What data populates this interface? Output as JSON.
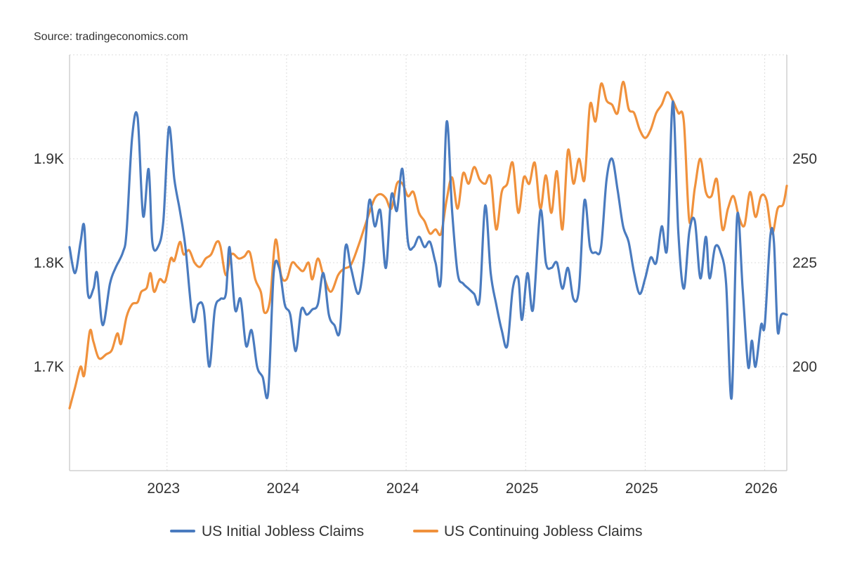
{
  "source": "Source: tradingeconomics.com",
  "chart_data": {
    "type": "line",
    "title": "",
    "x_range": [
      2022.4,
      2026.3
    ],
    "x_ticks": [
      {
        "value": 2022.93,
        "label": "2023"
      },
      {
        "value": 2023.58,
        "label": "2024"
      },
      {
        "value": 2024.23,
        "label": "2024"
      },
      {
        "value": 2024.88,
        "label": "2025"
      },
      {
        "value": 2025.53,
        "label": "2025"
      },
      {
        "value": 2026.18,
        "label": "2026"
      }
    ],
    "left_axis": {
      "unit": "thousands",
      "ylim": [
        1.6,
        2.0
      ],
      "ticks": [
        {
          "value": 1.7,
          "label": "1.7K"
        },
        {
          "value": 1.8,
          "label": "1.8K"
        },
        {
          "value": 1.9,
          "label": "1.9K"
        }
      ]
    },
    "right_axis": {
      "unit": "thousands",
      "ylim": [
        175,
        275
      ],
      "ticks": [
        {
          "value": 200,
          "label": "200"
        },
        {
          "value": 225,
          "label": "225"
        },
        {
          "value": 250,
          "label": "250"
        }
      ]
    },
    "grid": true,
    "legend_position": "bottom",
    "series": [
      {
        "name": "US Initial Jobless Claims",
        "axis": "left",
        "color": "#4a7bbf",
        "points": [
          [
            2022.4,
            1.815
          ],
          [
            2022.43,
            1.79
          ],
          [
            2022.46,
            1.82
          ],
          [
            2022.48,
            1.835
          ],
          [
            2022.5,
            1.77
          ],
          [
            2022.53,
            1.775
          ],
          [
            2022.55,
            1.79
          ],
          [
            2022.58,
            1.74
          ],
          [
            2022.62,
            1.78
          ],
          [
            2022.65,
            1.795
          ],
          [
            2022.69,
            1.81
          ],
          [
            2022.71,
            1.83
          ],
          [
            2022.74,
            1.92
          ],
          [
            2022.77,
            1.94
          ],
          [
            2022.8,
            1.845
          ],
          [
            2022.83,
            1.89
          ],
          [
            2022.85,
            1.82
          ],
          [
            2022.88,
            1.815
          ],
          [
            2022.91,
            1.84
          ],
          [
            2022.94,
            1.93
          ],
          [
            2022.97,
            1.88
          ],
          [
            2023.0,
            1.85
          ],
          [
            2023.03,
            1.815
          ],
          [
            2023.07,
            1.745
          ],
          [
            2023.1,
            1.76
          ],
          [
            2023.13,
            1.755
          ],
          [
            2023.16,
            1.7
          ],
          [
            2023.19,
            1.755
          ],
          [
            2023.22,
            1.765
          ],
          [
            2023.25,
            1.77
          ],
          [
            2023.27,
            1.815
          ],
          [
            2023.3,
            1.755
          ],
          [
            2023.33,
            1.765
          ],
          [
            2023.36,
            1.72
          ],
          [
            2023.39,
            1.735
          ],
          [
            2023.42,
            1.7
          ],
          [
            2023.45,
            1.69
          ],
          [
            2023.48,
            1.675
          ],
          [
            2023.51,
            1.79
          ],
          [
            2023.54,
            1.795
          ],
          [
            2023.57,
            1.76
          ],
          [
            2023.6,
            1.75
          ],
          [
            2023.63,
            1.715
          ],
          [
            2023.66,
            1.755
          ],
          [
            2023.69,
            1.75
          ],
          [
            2023.72,
            1.755
          ],
          [
            2023.75,
            1.76
          ],
          [
            2023.78,
            1.79
          ],
          [
            2023.81,
            1.75
          ],
          [
            2023.84,
            1.74
          ],
          [
            2023.87,
            1.735
          ],
          [
            2023.9,
            1.815
          ],
          [
            2023.93,
            1.795
          ],
          [
            2023.97,
            1.77
          ],
          [
            2024.0,
            1.8
          ],
          [
            2024.03,
            1.86
          ],
          [
            2024.06,
            1.835
          ],
          [
            2024.09,
            1.85
          ],
          [
            2024.12,
            1.795
          ],
          [
            2024.15,
            1.865
          ],
          [
            2024.18,
            1.85
          ],
          [
            2024.21,
            1.89
          ],
          [
            2024.24,
            1.82
          ],
          [
            2024.27,
            1.815
          ],
          [
            2024.3,
            1.825
          ],
          [
            2024.33,
            1.815
          ],
          [
            2024.36,
            1.82
          ],
          [
            2024.39,
            1.8
          ],
          [
            2024.42,
            1.785
          ],
          [
            2024.45,
            1.935
          ],
          [
            2024.48,
            1.85
          ],
          [
            2024.51,
            1.79
          ],
          [
            2024.54,
            1.78
          ],
          [
            2024.57,
            1.775
          ],
          [
            2024.6,
            1.77
          ],
          [
            2024.63,
            1.765
          ],
          [
            2024.66,
            1.855
          ],
          [
            2024.69,
            1.79
          ],
          [
            2024.72,
            1.76
          ],
          [
            2024.75,
            1.735
          ],
          [
            2024.78,
            1.72
          ],
          [
            2024.81,
            1.775
          ],
          [
            2024.84,
            1.785
          ],
          [
            2024.86,
            1.745
          ],
          [
            2024.89,
            1.79
          ],
          [
            2024.92,
            1.755
          ],
          [
            2024.96,
            1.85
          ],
          [
            2024.99,
            1.8
          ],
          [
            2025.02,
            1.795
          ],
          [
            2025.05,
            1.8
          ],
          [
            2025.08,
            1.775
          ],
          [
            2025.11,
            1.795
          ],
          [
            2025.14,
            1.765
          ],
          [
            2025.17,
            1.775
          ],
          [
            2025.2,
            1.86
          ],
          [
            2025.23,
            1.815
          ],
          [
            2025.26,
            1.81
          ],
          [
            2025.29,
            1.815
          ],
          [
            2025.32,
            1.88
          ],
          [
            2025.35,
            1.9
          ],
          [
            2025.38,
            1.87
          ],
          [
            2025.41,
            1.835
          ],
          [
            2025.44,
            1.82
          ],
          [
            2025.47,
            1.79
          ],
          [
            2025.5,
            1.77
          ],
          [
            2025.53,
            1.785
          ],
          [
            2025.56,
            1.805
          ],
          [
            2025.59,
            1.8
          ],
          [
            2025.62,
            1.835
          ],
          [
            2025.65,
            1.815
          ],
          [
            2025.68,
            1.955
          ],
          [
            2025.71,
            1.83
          ],
          [
            2025.74,
            1.775
          ],
          [
            2025.77,
            1.83
          ],
          [
            2025.8,
            1.84
          ],
          [
            2025.83,
            1.785
          ],
          [
            2025.86,
            1.825
          ],
          [
            2025.88,
            1.785
          ],
          [
            2025.91,
            1.815
          ],
          [
            2025.94,
            1.81
          ],
          [
            2025.97,
            1.78
          ],
          [
            2026.0,
            1.67
          ],
          [
            2026.03,
            1.845
          ],
          [
            2026.06,
            1.775
          ],
          [
            2026.09,
            1.7
          ],
          [
            2026.11,
            1.725
          ],
          [
            2026.13,
            1.7
          ],
          [
            2026.16,
            1.74
          ],
          [
            2026.18,
            1.74
          ],
          [
            2026.21,
            1.825
          ],
          [
            2026.23,
            1.82
          ],
          [
            2026.25,
            1.735
          ],
          [
            2026.27,
            1.75
          ],
          [
            2026.3,
            1.75
          ]
        ]
      },
      {
        "name": "US Continuing Jobless Claims",
        "axis": "right",
        "color": "#f0913c",
        "points": [
          [
            2022.4,
            190.0
          ],
          [
            2022.43,
            195.0
          ],
          [
            2022.46,
            200.0
          ],
          [
            2022.48,
            198.0
          ],
          [
            2022.51,
            208.5
          ],
          [
            2022.53,
            206.0
          ],
          [
            2022.56,
            202.0
          ],
          [
            2022.6,
            203.0
          ],
          [
            2022.63,
            204.0
          ],
          [
            2022.66,
            208.0
          ],
          [
            2022.68,
            205.5
          ],
          [
            2022.71,
            212.0
          ],
          [
            2022.74,
            215.0
          ],
          [
            2022.77,
            215.5
          ],
          [
            2022.79,
            218.0
          ],
          [
            2022.82,
            219.0
          ],
          [
            2022.84,
            222.5
          ],
          [
            2022.86,
            218.0
          ],
          [
            2022.89,
            221.0
          ],
          [
            2022.92,
            220.5
          ],
          [
            2022.95,
            226.0
          ],
          [
            2022.97,
            225.5
          ],
          [
            2023.0,
            230.0
          ],
          [
            2023.02,
            227.0
          ],
          [
            2023.05,
            228.0
          ],
          [
            2023.08,
            225.0
          ],
          [
            2023.11,
            224.0
          ],
          [
            2023.14,
            226.0
          ],
          [
            2023.17,
            227.0
          ],
          [
            2023.2,
            230.0
          ],
          [
            2023.22,
            229.0
          ],
          [
            2023.25,
            222.0
          ],
          [
            2023.28,
            227.0
          ],
          [
            2023.32,
            226.0
          ],
          [
            2023.35,
            226.5
          ],
          [
            2023.38,
            227.5
          ],
          [
            2023.41,
            221.0
          ],
          [
            2023.44,
            218.0
          ],
          [
            2023.46,
            213.0
          ],
          [
            2023.49,
            216.0
          ],
          [
            2023.52,
            230.5
          ],
          [
            2023.55,
            222.0
          ],
          [
            2023.58,
            221.0
          ],
          [
            2023.61,
            225.0
          ],
          [
            2023.64,
            224.0
          ],
          [
            2023.67,
            223.0
          ],
          [
            2023.7,
            225.0
          ],
          [
            2023.72,
            221.0
          ],
          [
            2023.75,
            226.0
          ],
          [
            2023.78,
            222.0
          ],
          [
            2023.82,
            218.0
          ],
          [
            2023.86,
            222.0
          ],
          [
            2023.89,
            223.5
          ],
          [
            2023.93,
            224.5
          ],
          [
            2023.97,
            229.0
          ],
          [
            2024.0,
            233.0
          ],
          [
            2024.03,
            237.0
          ],
          [
            2024.06,
            240.5
          ],
          [
            2024.09,
            241.5
          ],
          [
            2024.12,
            240.5
          ],
          [
            2024.15,
            238.0
          ],
          [
            2024.18,
            244.0
          ],
          [
            2024.21,
            244.0
          ],
          [
            2024.24,
            241.0
          ],
          [
            2024.27,
            242.0
          ],
          [
            2024.3,
            237.0
          ],
          [
            2024.33,
            235.0
          ],
          [
            2024.36,
            232.0
          ],
          [
            2024.39,
            233.0
          ],
          [
            2024.42,
            232.0
          ],
          [
            2024.45,
            240.0
          ],
          [
            2024.48,
            245.5
          ],
          [
            2024.51,
            238.0
          ],
          [
            2024.54,
            246.5
          ],
          [
            2024.57,
            244.0
          ],
          [
            2024.6,
            248.0
          ],
          [
            2024.63,
            245.0
          ],
          [
            2024.66,
            244.0
          ],
          [
            2024.69,
            245.5
          ],
          [
            2024.72,
            233.0
          ],
          [
            2024.75,
            242.0
          ],
          [
            2024.78,
            244.0
          ],
          [
            2024.81,
            249.0
          ],
          [
            2024.84,
            237.0
          ],
          [
            2024.87,
            245.5
          ],
          [
            2024.9,
            244.0
          ],
          [
            2024.93,
            249.0
          ],
          [
            2024.96,
            238.0
          ],
          [
            2024.99,
            246.0
          ],
          [
            2025.02,
            237.0
          ],
          [
            2025.05,
            247.0
          ],
          [
            2025.08,
            233.0
          ],
          [
            2025.11,
            252.0
          ],
          [
            2025.14,
            244.0
          ],
          [
            2025.17,
            250.0
          ],
          [
            2025.2,
            245.0
          ],
          [
            2025.23,
            263.0
          ],
          [
            2025.26,
            259.0
          ],
          [
            2025.29,
            268.0
          ],
          [
            2025.32,
            264.0
          ],
          [
            2025.35,
            263.0
          ],
          [
            2025.38,
            261.0
          ],
          [
            2025.41,
            268.5
          ],
          [
            2025.44,
            262.0
          ],
          [
            2025.47,
            261.0
          ],
          [
            2025.5,
            257.0
          ],
          [
            2025.53,
            255.0
          ],
          [
            2025.56,
            257.0
          ],
          [
            2025.59,
            261.0
          ],
          [
            2025.62,
            263.0
          ],
          [
            2025.65,
            266.0
          ],
          [
            2025.68,
            264.0
          ],
          [
            2025.71,
            261.0
          ],
          [
            2025.74,
            259.0
          ],
          [
            2025.77,
            235.0
          ],
          [
            2025.8,
            243.0
          ],
          [
            2025.83,
            250.0
          ],
          [
            2025.86,
            242.0
          ],
          [
            2025.89,
            241.0
          ],
          [
            2025.92,
            245.0
          ],
          [
            2025.95,
            233.0
          ],
          [
            2025.98,
            238.0
          ],
          [
            2026.01,
            241.0
          ],
          [
            2026.04,
            236.0
          ],
          [
            2026.07,
            234.0
          ],
          [
            2026.1,
            242.0
          ],
          [
            2026.13,
            236.0
          ],
          [
            2026.16,
            241.0
          ],
          [
            2026.19,
            240.0
          ],
          [
            2026.22,
            232.0
          ],
          [
            2026.25,
            238.0
          ],
          [
            2026.28,
            239.0
          ],
          [
            2026.3,
            243.5
          ]
        ]
      }
    ]
  }
}
